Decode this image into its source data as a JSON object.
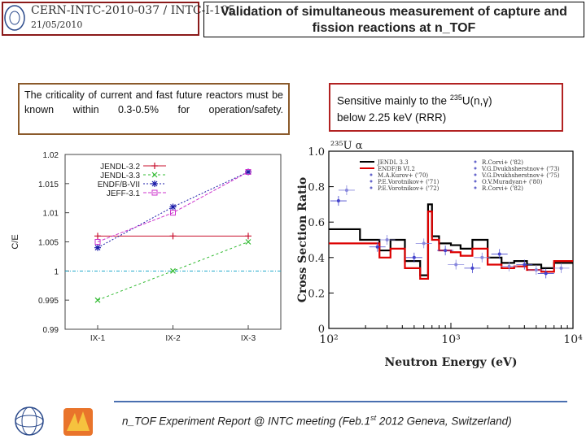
{
  "header": {
    "ref_line1": "CERN-INTC-2010-037 / INTC-I-105",
    "ref_line2": "21/05/2010",
    "title": "Validation of simultaneous measurement of capture and fission reactions at n_TOF"
  },
  "notes": {
    "left": "The criticality of current and fast future reactors must be known within 0.3-0.5% for operation/safety.",
    "right_prefix": "Sensitive mainly to the ",
    "right_sup": "235",
    "right_reaction": "U(n,γ)",
    "right_suffix": "below 2.25 keV (RRR)"
  },
  "footer": {
    "prefix": "n_TOF Experiment Report @ INTC meeting (Feb.1",
    "sup": "st",
    "suffix": " 2012 Geneva, Switzerland)"
  },
  "colors": {
    "accent": "#8b1a1a",
    "rule": "#4a6fb0"
  },
  "chart_data": [
    {
      "type": "line",
      "categories": [
        "IX-1",
        "IX-2",
        "IX-3"
      ],
      "ylabel": "C/E",
      "ylim": [
        0.99,
        1.02
      ],
      "yticks": [
        "0.99",
        "0.995",
        "1",
        "1.005",
        "1.01",
        "1.015",
        "1.02"
      ],
      "grid": false,
      "legend": "top-left",
      "reference_line": 1,
      "series": [
        {
          "name": "JENDL-3.2",
          "color": "#c8102e",
          "marker": "+",
          "values": [
            1.006,
            1.006,
            1.006
          ]
        },
        {
          "name": "JENDL-3.3",
          "color": "#33bb33",
          "marker": "x",
          "values": [
            0.995,
            1.0,
            1.005
          ]
        },
        {
          "name": "ENDF/B-VII",
          "color": "#1a1aa8",
          "marker": "*",
          "values": [
            1.004,
            1.011,
            1.017
          ]
        },
        {
          "name": "JEFF-3.1",
          "color": "#cc33cc",
          "marker": "square",
          "values": [
            1.005,
            1.01,
            1.017
          ]
        }
      ]
    },
    {
      "type": "line",
      "title_label": "²³⁵U α",
      "xlabel": "Neutron Energy (eV)",
      "ylabel": "Cross Section Ratio",
      "xscale": "log",
      "xlim": [
        100,
        10000
      ],
      "ylim": [
        0,
        1.0
      ],
      "xtick_labels": [
        "10²",
        "10³",
        "10⁴"
      ],
      "ytick_labels": [
        "0",
        "0.2",
        "0.4",
        "0.6",
        "0.8",
        "1.0"
      ],
      "legend": "top",
      "series": [
        {
          "name": "JENDL 3.3",
          "color": "#000000",
          "x": [
            100,
            180,
            260,
            320,
            420,
            560,
            650,
            700,
            800,
            1000,
            1200,
            1500,
            2000,
            2600,
            3300,
            4200,
            5500,
            7000,
            10000
          ],
          "y": [
            0.56,
            0.5,
            0.44,
            0.5,
            0.38,
            0.3,
            0.7,
            0.52,
            0.48,
            0.47,
            0.45,
            0.5,
            0.4,
            0.37,
            0.38,
            0.36,
            0.34,
            0.37,
            0.33
          ]
        },
        {
          "name": "ENDF/B VI.2",
          "color": "#dd0000",
          "x": [
            100,
            180,
            260,
            320,
            420,
            560,
            650,
            700,
            800,
            1000,
            1200,
            1500,
            2000,
            2600,
            3300,
            4200,
            5500,
            7000,
            10000
          ],
          "y": [
            0.48,
            0.48,
            0.4,
            0.45,
            0.34,
            0.28,
            0.66,
            0.5,
            0.44,
            0.43,
            0.41,
            0.45,
            0.36,
            0.34,
            0.35,
            0.33,
            0.32,
            0.38,
            0.32
          ]
        },
        {
          "name": "M.A.Kurov+ ('70)",
          "color": "#4444cc",
          "x": [
            120,
            250,
            500,
            900,
            1500,
            2500,
            4000,
            6000
          ],
          "y": [
            0.72,
            0.46,
            0.4,
            0.44,
            0.34,
            0.42,
            0.36,
            0.31
          ]
        },
        {
          "name": "O.V.Muradyan+ ('80)",
          "color": "#8888dd",
          "x": [
            140,
            300,
            600,
            1100,
            1800,
            3000,
            5000,
            8000
          ],
          "y": [
            0.78,
            0.5,
            0.48,
            0.36,
            0.4,
            0.35,
            0.33,
            0.34
          ]
        }
      ],
      "legend_entries": [
        "JENDL 3.3",
        "ENDF/B VI.2",
        "M.A.Kurov+ ('70)",
        "P.E.Vorotnikov+ ('71)",
        "P.E.Vorotnikov+ ('72)",
        "R.Corvi+ ('82)",
        "V.G.Dvukhsherstnov+ ('73)",
        "V.G.Dvukhsherstnov+ ('75)",
        "O.V.Muradyan+ ('80)",
        "R.Corvi+ ('82)"
      ]
    }
  ]
}
